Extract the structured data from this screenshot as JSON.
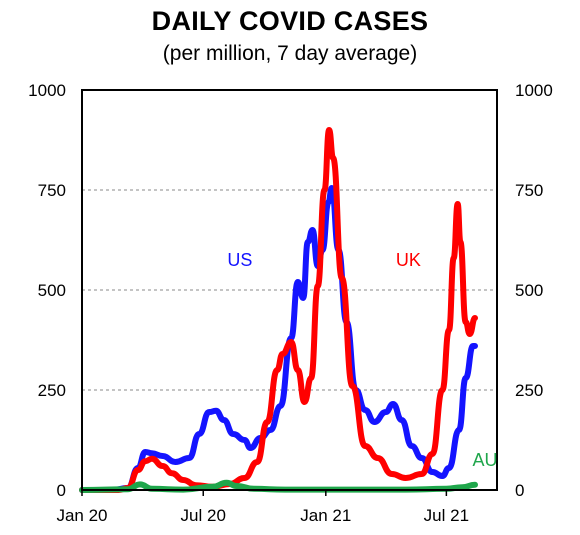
{
  "chart_data": {
    "type": "line",
    "title": "DAILY COVID CASES",
    "subtitle": "(per million, 7 day average)",
    "xlabel": "",
    "ylabel": "",
    "ylim": [
      0,
      1000
    ],
    "xlim": [
      "2020-01-01",
      "2021-09-15"
    ],
    "yticks": [
      0,
      250,
      500,
      750,
      1000
    ],
    "y_tick_labels": [
      "0",
      "250",
      "500",
      "750",
      "1000"
    ],
    "x_tick_labels": [
      {
        "label": "Jan 20",
        "date": "2020-01-01"
      },
      {
        "label": "Jul 20",
        "date": "2020-07-01"
      },
      {
        "label": "Jan 21",
        "date": "2021-01-01"
      },
      {
        "label": "Jul 21",
        "date": "2021-07-01"
      }
    ],
    "grid": "horizontal dashed",
    "legend": "inline labels",
    "series": [
      {
        "name": "US",
        "color": "#1414ff",
        "points": [
          [
            "2020-01-01",
            0
          ],
          [
            "2020-02-15",
            0
          ],
          [
            "2020-03-10",
            5
          ],
          [
            "2020-03-25",
            55
          ],
          [
            "2020-04-05",
            95
          ],
          [
            "2020-04-15",
            92
          ],
          [
            "2020-05-01",
            85
          ],
          [
            "2020-05-20",
            70
          ],
          [
            "2020-06-10",
            80
          ],
          [
            "2020-06-25",
            140
          ],
          [
            "2020-07-10",
            195
          ],
          [
            "2020-07-20",
            198
          ],
          [
            "2020-08-01",
            175
          ],
          [
            "2020-08-15",
            140
          ],
          [
            "2020-09-01",
            125
          ],
          [
            "2020-09-10",
            105
          ],
          [
            "2020-09-25",
            130
          ],
          [
            "2020-10-10",
            150
          ],
          [
            "2020-10-25",
            210
          ],
          [
            "2020-11-10",
            380
          ],
          [
            "2020-11-20",
            520
          ],
          [
            "2020-11-28",
            480
          ],
          [
            "2020-12-05",
            620
          ],
          [
            "2020-12-12",
            650
          ],
          [
            "2020-12-20",
            560
          ],
          [
            "2020-12-27",
            600
          ],
          [
            "2021-01-05",
            720
          ],
          [
            "2021-01-10",
            755
          ],
          [
            "2021-01-20",
            600
          ],
          [
            "2021-02-01",
            420
          ],
          [
            "2021-02-15",
            250
          ],
          [
            "2021-03-01",
            200
          ],
          [
            "2021-03-15",
            170
          ],
          [
            "2021-04-01",
            195
          ],
          [
            "2021-04-12",
            215
          ],
          [
            "2021-04-25",
            175
          ],
          [
            "2021-05-10",
            110
          ],
          [
            "2021-05-25",
            80
          ],
          [
            "2021-06-10",
            45
          ],
          [
            "2021-06-25",
            35
          ],
          [
            "2021-07-05",
            55
          ],
          [
            "2021-07-20",
            150
          ],
          [
            "2021-07-30",
            280
          ],
          [
            "2021-08-10",
            360
          ],
          [
            "2021-08-13",
            360
          ]
        ]
      },
      {
        "name": "UK",
        "color": "#ff0000",
        "points": [
          [
            "2020-01-01",
            0
          ],
          [
            "2020-02-25",
            0
          ],
          [
            "2020-03-10",
            5
          ],
          [
            "2020-03-25",
            50
          ],
          [
            "2020-04-05",
            72
          ],
          [
            "2020-04-15",
            78
          ],
          [
            "2020-05-01",
            60
          ],
          [
            "2020-05-15",
            42
          ],
          [
            "2020-06-01",
            25
          ],
          [
            "2020-06-20",
            12
          ],
          [
            "2020-07-15",
            8
          ],
          [
            "2020-08-10",
            15
          ],
          [
            "2020-09-01",
            30
          ],
          [
            "2020-09-20",
            70
          ],
          [
            "2020-10-05",
            170
          ],
          [
            "2020-10-20",
            300
          ],
          [
            "2020-10-28",
            340
          ],
          [
            "2020-11-10",
            370
          ],
          [
            "2020-11-20",
            300
          ],
          [
            "2020-11-30",
            220
          ],
          [
            "2020-12-10",
            280
          ],
          [
            "2020-12-20",
            510
          ],
          [
            "2020-12-30",
            750
          ],
          [
            "2021-01-06",
            900
          ],
          [
            "2021-01-12",
            830
          ],
          [
            "2021-01-25",
            530
          ],
          [
            "2021-02-10",
            260
          ],
          [
            "2021-03-01",
            110
          ],
          [
            "2021-03-20",
            80
          ],
          [
            "2021-04-10",
            40
          ],
          [
            "2021-05-01",
            30
          ],
          [
            "2021-05-25",
            40
          ],
          [
            "2021-06-10",
            90
          ],
          [
            "2021-06-25",
            250
          ],
          [
            "2021-07-05",
            400
          ],
          [
            "2021-07-12",
            580
          ],
          [
            "2021-07-18",
            715
          ],
          [
            "2021-07-22",
            620
          ],
          [
            "2021-07-30",
            420
          ],
          [
            "2021-08-05",
            390
          ],
          [
            "2021-08-13",
            430
          ]
        ]
      },
      {
        "name": "AU",
        "color": "#1fa64b",
        "points": [
          [
            "2020-01-01",
            0
          ],
          [
            "2020-03-10",
            2
          ],
          [
            "2020-03-28",
            14
          ],
          [
            "2020-04-15",
            3
          ],
          [
            "2020-06-01",
            1
          ],
          [
            "2020-07-15",
            8
          ],
          [
            "2020-08-05",
            18
          ],
          [
            "2020-08-20",
            10
          ],
          [
            "2020-09-15",
            3
          ],
          [
            "2020-11-01",
            1
          ],
          [
            "2021-01-01",
            1
          ],
          [
            "2021-05-01",
            1
          ],
          [
            "2021-07-01",
            3
          ],
          [
            "2021-07-25",
            7
          ],
          [
            "2021-08-13",
            13
          ]
        ]
      }
    ]
  }
}
